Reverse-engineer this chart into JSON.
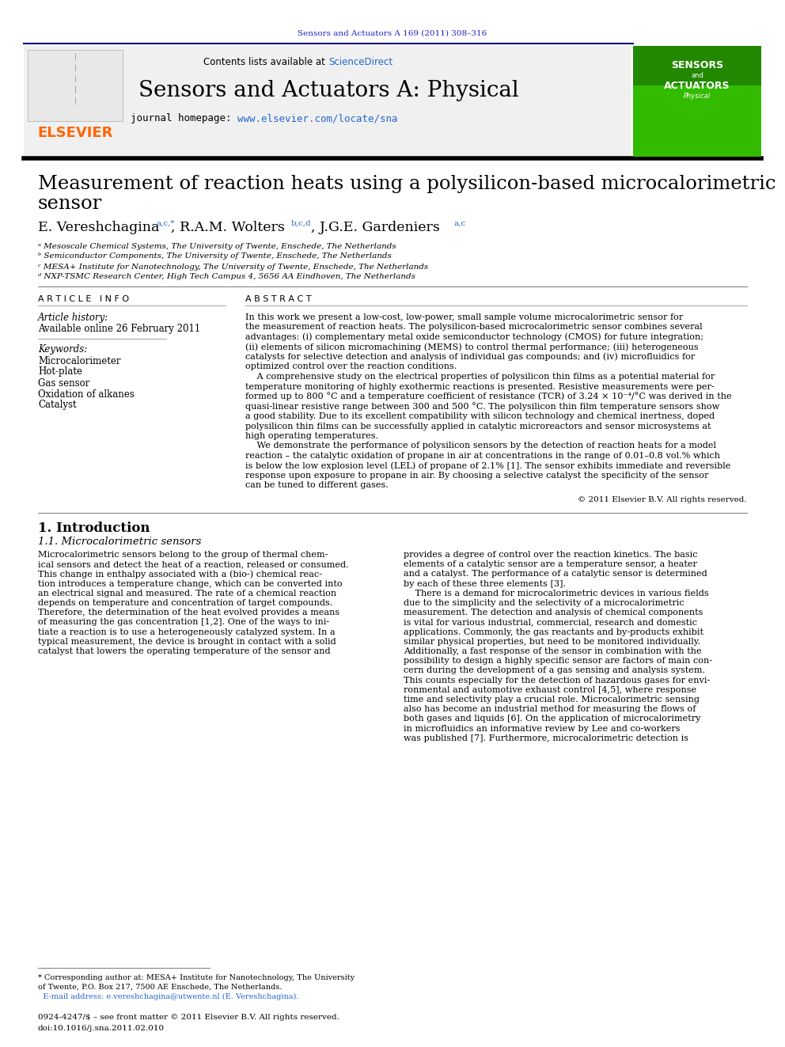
{
  "page_bg": "#ffffff",
  "top_ref": "Sensors and Actuators A 169 (2011) 308–316",
  "top_ref_color": "#2222cc",
  "header_bg": "#f0f0f0",
  "contents_text": "Contents lists available at ",
  "sciencedirect_text": "ScienceDirect",
  "sciencedirect_color": "#2266cc",
  "journal_title": "Sensors and Actuators A: Physical",
  "journal_homepage_text": "journal homepage: ",
  "journal_url": "www.elsevier.com/locate/sna",
  "journal_url_color": "#2266cc",
  "affil_a": "ᵃ Mesoscale Chemical Systems, The University of Twente, Enschede, The Netherlands",
  "affil_b": "ᵇ Semiconductor Components, The University of Twente, Enschede, The Netherlands",
  "affil_c": "ᶜ MESA+ Institute for Nanotechnology, The University of Twente, Enschede, The Netherlands",
  "affil_d": "ᵈ NXP-TSMC Research Center, High Tech Campus 4, 5656 AA Eindhoven, The Netherlands",
  "article_info_label": "A R T I C L E   I N F O",
  "abstract_label": "A B S T R A C T",
  "article_history_label": "Article history:",
  "available_online": "Available online 26 February 2011",
  "keywords_label": "Keywords:",
  "keywords": [
    "Microcalorimeter",
    "Hot-plate",
    "Gas sensor",
    "Oxidation of alkanes",
    "Catalyst"
  ],
  "copyright": "© 2011 Elsevier B.V. All rights reserved.",
  "section1_title": "1. Introduction",
  "section1_1_title": "1.1. Microcalorimetric sensors",
  "footnote_line1": "* Corresponding author at: MESA+ Institute for Nanotechnology, The University",
  "footnote_line2": "of Twente, P.O. Box 217, 7500 AE Enschede, The Netherlands.",
  "footnote_line3": "  E-mail address: e.vereshchagina@utwente.nl (E. Vereshchagina).",
  "bottom_text1": "0924-4247/$ – see front matter © 2011 Elsevier B.V. All rights reserved.",
  "bottom_text2": "doi:10.1016/j.sna.2011.02.010",
  "abstract_lines": [
    "In this work we present a low-cost, low-power, small sample volume microcalorimetric sensor for",
    "the measurement of reaction heats. The polysilicon-based microcalorimetric sensor combines several",
    "advantages: (i) complementary metal oxide semiconductor technology (CMOS) for future integration;",
    "(ii) elements of silicon micromachining (MEMS) to control thermal performance; (iii) heterogeneous",
    "catalysts for selective detection and analysis of individual gas compounds; and (iv) microfluidics for",
    "optimized control over the reaction conditions.",
    "    A comprehensive study on the electrical properties of polysilicon thin films as a potential material for",
    "temperature monitoring of highly exothermic reactions is presented. Resistive measurements were per-",
    "formed up to 800 °C and a temperature coefficient of resistance (TCR) of 3.24 × 10⁻⁴/°C was derived in the",
    "quasi-linear resistive range between 300 and 500 °C. The polysilicon thin film temperature sensors show",
    "a good stability. Due to its excellent compatibility with silicon technology and chemical inertness, doped",
    "polysilicon thin films can be successfully applied in catalytic microreactors and sensor microsystems at",
    "high operating temperatures.",
    "    We demonstrate the performance of polysilicon sensors by the detection of reaction heats for a model",
    "reaction – the catalytic oxidation of propane in air at concentrations in the range of 0.01–0.8 vol.% which",
    "is below the low explosion level (LEL) of propane of 2.1% [1]. The sensor exhibits immediate and reversible",
    "response upon exposure to propane in air. By choosing a selective catalyst the specificity of the sensor",
    "can be tuned to different gases."
  ],
  "intro_col1": [
    "Microcalorimetric sensors belong to the group of thermal chem-",
    "ical sensors and detect the heat of a reaction, released or consumed.",
    "This change in enthalpy associated with a (bio-) chemical reac-",
    "tion introduces a temperature change, which can be converted into",
    "an electrical signal and measured. The rate of a chemical reaction",
    "depends on temperature and concentration of target compounds.",
    "Therefore, the determination of the heat evolved provides a means",
    "of measuring the gas concentration [1,2]. One of the ways to ini-",
    "tiate a reaction is to use a heterogeneously catalyzed system. In a",
    "typical measurement, the device is brought in contact with a solid",
    "catalyst that lowers the operating temperature of the sensor and"
  ],
  "intro_col2": [
    "provides a degree of control over the reaction kinetics. The basic",
    "elements of a catalytic sensor are a temperature sensor, a heater",
    "and a catalyst. The performance of a catalytic sensor is determined",
    "by each of these three elements [3].",
    "    There is a demand for microcalorimetric devices in various fields",
    "due to the simplicity and the selectivity of a microcalorimetric",
    "measurement. The detection and analysis of chemical components",
    "is vital for various industrial, commercial, research and domestic",
    "applications. Commonly, the gas reactants and by-products exhibit",
    "similar physical properties, but need to be monitored individually.",
    "Additionally, a fast response of the sensor in combination with the",
    "possibility to design a highly specific sensor are factors of main con-",
    "cern during the development of a gas sensing and analysis system.",
    "This counts especially for the detection of hazardous gases for envi-",
    "ronmental and automotive exhaust control [4,5], where response",
    "time and selectivity play a crucial role. Microcalorimetric sensing",
    "also has become an industrial method for measuring the flows of",
    "both gases and liquids [6]. On the application of microcalorimetry",
    "in microfluidics an informative review by Lee and co-workers",
    "was published [7]. Furthermore, microcalorimetric detection is"
  ]
}
